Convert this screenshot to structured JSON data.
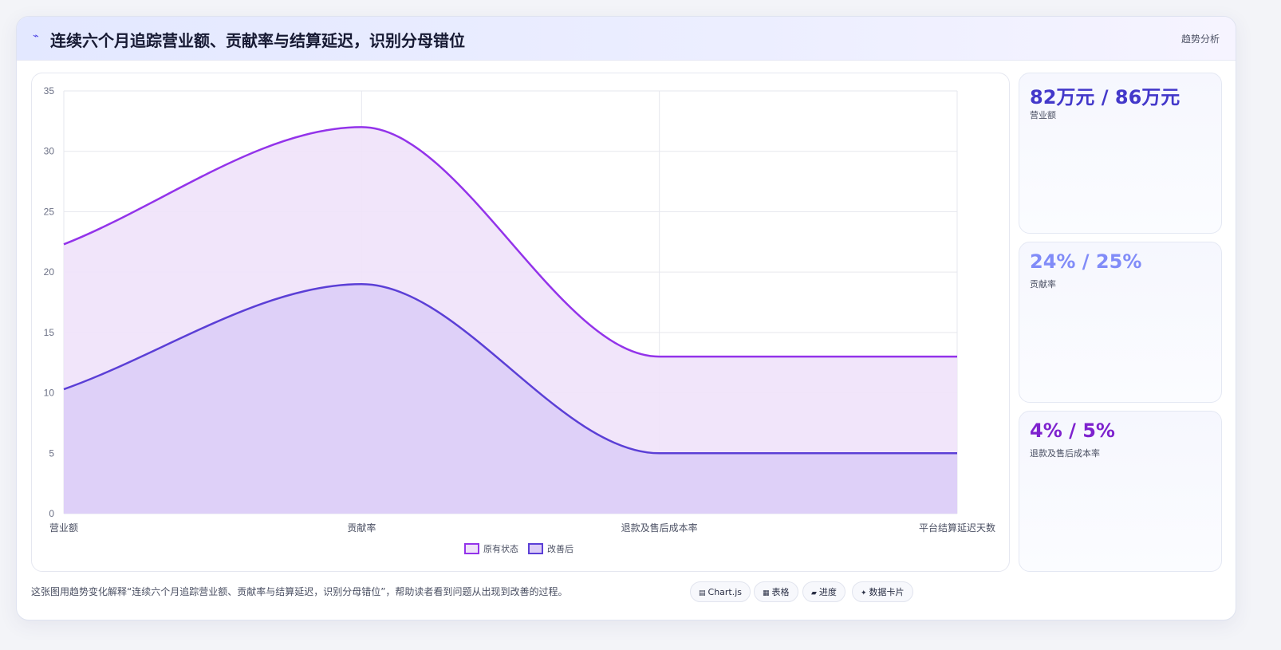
{
  "header": {
    "title": "连续六个月追踪营业额、贡献率与结算延迟，识别分母错位",
    "tag": "趋势分析"
  },
  "stats": [
    {
      "value": "82万元 / 86万元",
      "label": "营业额",
      "color": "#4338ca"
    },
    {
      "value": "24% / 25%",
      "label": "贡献率",
      "color": "#818cf8"
    },
    {
      "value": "4% / 5%",
      "label": "退款及售后成本率",
      "color": "#7e22ce"
    }
  ],
  "caption": "这张图用趋势变化解释“连续六个月追踪营业额、贡献率与结算延迟，识别分母错位”，帮助读者看到问题从出现到改善的过程。",
  "chips": [
    {
      "icon": "chart-icon",
      "glyph": "▤",
      "label": "Chart.js"
    },
    {
      "icon": "table-icon",
      "glyph": "▦",
      "label": "表格"
    },
    {
      "icon": "progress-icon",
      "glyph": "▰",
      "label": "进度"
    },
    {
      "icon": "card-icon",
      "glyph": "✦",
      "label": "数据卡片"
    }
  ],
  "chart_data": {
    "type": "area",
    "categories": [
      "营业额",
      "贡献率",
      "退款及售后成本率",
      "平台结算延迟天数"
    ],
    "series": [
      {
        "name": "原有状态",
        "values": [
          22.3,
          32,
          13,
          13
        ],
        "color": "#9333ea",
        "fill": "#efe2f9"
      },
      {
        "name": "改善后",
        "values": [
          10.3,
          19,
          5,
          5
        ],
        "color": "#5b3fd6",
        "fill": "#dccdf7"
      }
    ],
    "ylim": [
      0,
      35
    ],
    "yticks": [
      0,
      5,
      10,
      15,
      20,
      25,
      30,
      35
    ],
    "grid": true,
    "legend": "bottom",
    "curve": "smooth"
  }
}
